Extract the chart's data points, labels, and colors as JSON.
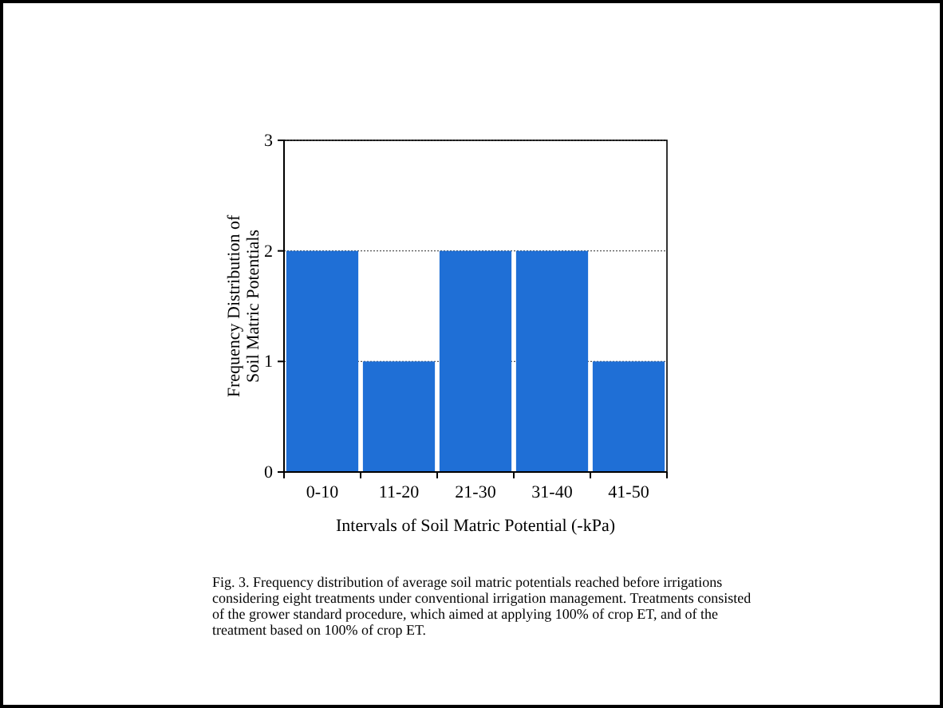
{
  "chart_data": {
    "type": "bar",
    "categories": [
      "0-10",
      "11-20",
      "21-30",
      "31-40",
      "41-50"
    ],
    "values": [
      2,
      1,
      2,
      2,
      1
    ],
    "color": "#1f6fd6",
    "ylim": [
      0,
      3
    ],
    "yticks": [
      0,
      1,
      2,
      3
    ],
    "grid": "y",
    "xlabel": "Intervals of Soil Matric Potential (-kPa)",
    "ylabel": "Frequency Distribution of Soil Matric Potentials",
    "annotations": [
      "Fig. 3. Frequency distribution of average soil matric potentials reached before irrigations considering eight treatments under conventional irrigation management. Treatments consisted of the grower standard procedure, which aimed at applying 100% of crop ET, and of the treatment based on 100% of crop ET."
    ]
  }
}
